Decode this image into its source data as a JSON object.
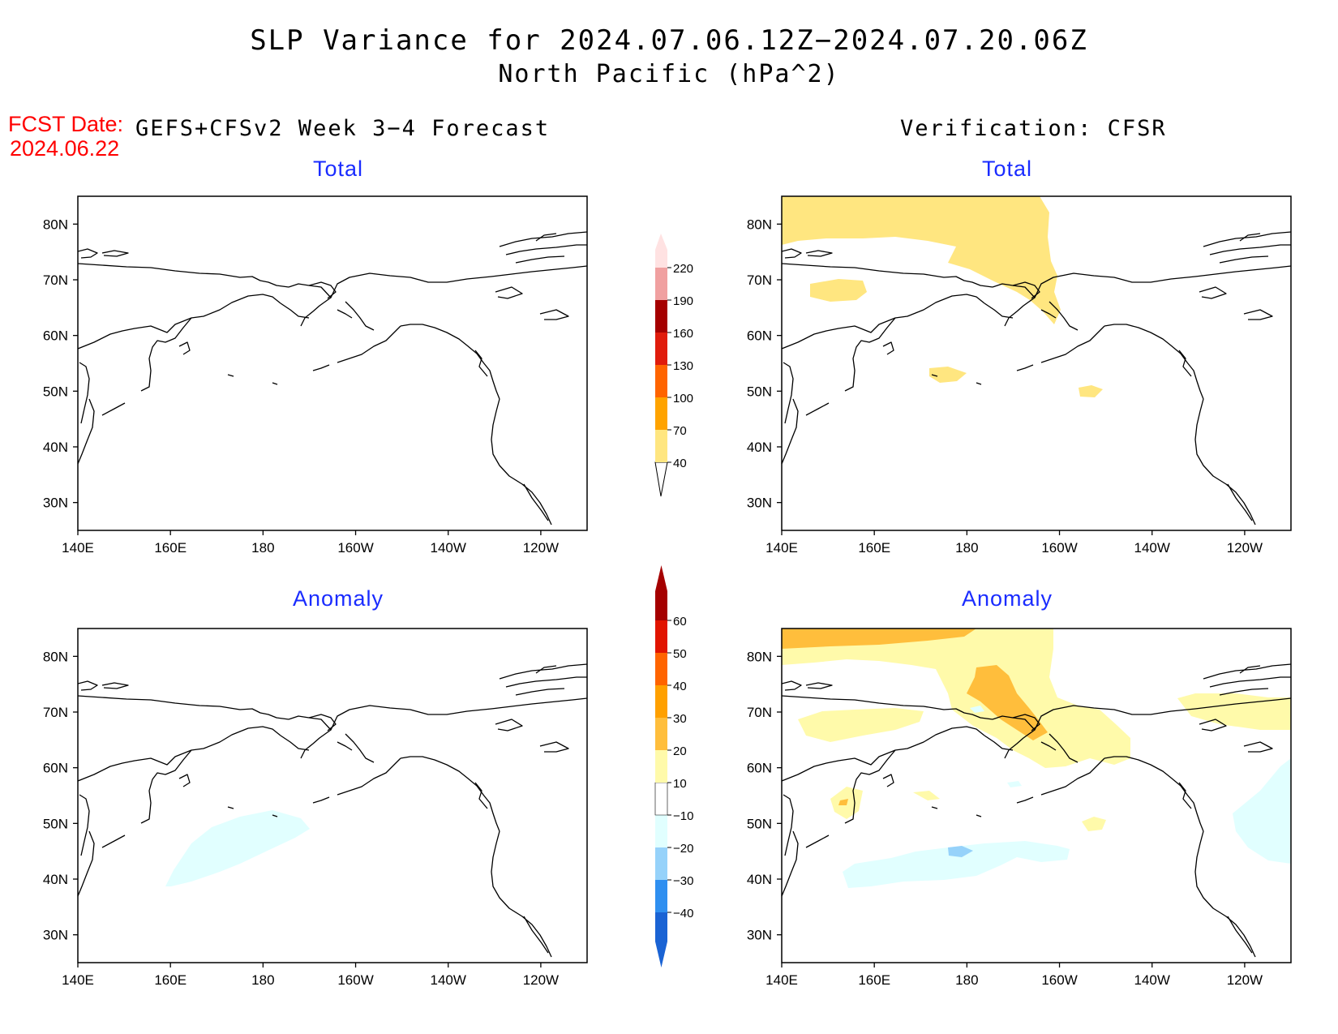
{
  "figure": {
    "title_line1": "SLP Variance for 2024.07.06.12Z−2024.07.20.06Z",
    "title_line2": "North Pacific (hPa^2)",
    "fcst_label": "FCST Date:",
    "fcst_date": "2024.06.22",
    "left_heading": "GEFS+CFSv2 Week 3−4 Forecast",
    "right_heading": "Verification: CFSR"
  },
  "panels": {
    "forecast_total": {
      "title": "Total"
    },
    "verification_total": {
      "title": "Total"
    },
    "forecast_anomaly": {
      "title": "Anomaly"
    },
    "verification_anomaly": {
      "title": "Anomaly"
    }
  },
  "axes": {
    "x_ticks": [
      "140E",
      "160E",
      "180",
      "160W",
      "140W",
      "120W"
    ],
    "y_ticks": [
      "80N",
      "70N",
      "60N",
      "50N",
      "40N",
      "30N"
    ]
  },
  "colorbars": {
    "total": {
      "levels": [
        "40",
        "70",
        "100",
        "130",
        "160",
        "190",
        "220"
      ],
      "colors": [
        "#ffe680",
        "#ffa300",
        "#ff6400",
        "#e01c0c",
        "#a50000",
        "#f0a0a0",
        "#ffe2e2"
      ]
    },
    "anomaly": {
      "levels": [
        "−40",
        "−30",
        "−20",
        "−10",
        "10",
        "20",
        "30",
        "40",
        "50",
        "60"
      ],
      "colors": [
        "#1a63d4",
        "#2f8ff0",
        "#96d2fa",
        "#e1ffff",
        "#ffffff",
        "#fffaaa",
        "#ffbe3c",
        "#ffa000",
        "#ff6400",
        "#e11400",
        "#a50000"
      ]
    }
  },
  "colors": {
    "title_text": "#000000",
    "fcst_text": "#ff0000",
    "panel_title": "#1a2cff"
  }
}
